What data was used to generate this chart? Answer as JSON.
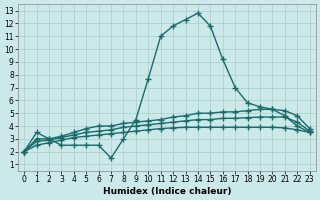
{
  "xlabel": "Humidex (Indice chaleur)",
  "ylabel": "",
  "xlim": [
    0,
    23
  ],
  "ylim": [
    1,
    13
  ],
  "xticks": [
    0,
    1,
    2,
    3,
    4,
    5,
    6,
    7,
    8,
    9,
    10,
    11,
    12,
    13,
    14,
    15,
    16,
    17,
    18,
    19,
    20,
    21,
    22,
    23
  ],
  "yticks": [
    1,
    2,
    3,
    4,
    5,
    6,
    7,
    8,
    9,
    10,
    11,
    12,
    13
  ],
  "bg_color": "#cce9e9",
  "grid_color": "#aacccc",
  "line_color": "#1a6b6b",
  "line1_x": [
    0,
    1,
    2,
    3,
    4,
    5,
    6,
    7,
    8,
    9,
    10,
    11,
    12,
    13,
    14,
    15,
    16,
    17,
    18,
    19,
    20,
    21,
    22,
    23
  ],
  "line1_y": [
    2.0,
    3.5,
    3.0,
    2.5,
    2.5,
    2.5,
    2.5,
    1.5,
    3.0,
    4.5,
    7.7,
    11.0,
    11.8,
    12.3,
    12.8,
    11.8,
    9.2,
    7.0,
    5.8,
    5.5,
    5.3,
    4.8,
    4.0,
    3.5
  ],
  "line2_x": [
    0,
    1,
    2,
    3,
    4,
    5,
    6,
    7,
    8,
    9,
    10,
    11,
    12,
    13,
    14,
    15,
    16,
    17,
    18,
    19,
    20,
    21,
    22,
    23
  ],
  "line2_y": [
    2.0,
    3.0,
    3.0,
    3.2,
    3.5,
    3.8,
    4.0,
    4.0,
    4.2,
    4.3,
    4.4,
    4.5,
    4.7,
    4.8,
    5.0,
    5.0,
    5.1,
    5.1,
    5.2,
    5.3,
    5.3,
    5.2,
    4.8,
    3.8
  ],
  "line3_x": [
    0,
    1,
    2,
    3,
    4,
    5,
    6,
    7,
    8,
    9,
    10,
    11,
    12,
    13,
    14,
    15,
    16,
    17,
    18,
    19,
    20,
    21,
    22,
    23
  ],
  "line3_y": [
    2.0,
    2.8,
    2.9,
    3.1,
    3.3,
    3.5,
    3.6,
    3.7,
    3.9,
    4.0,
    4.1,
    4.2,
    4.3,
    4.4,
    4.5,
    4.5,
    4.6,
    4.6,
    4.65,
    4.7,
    4.7,
    4.7,
    4.3,
    3.6
  ],
  "line4_x": [
    0,
    1,
    2,
    3,
    4,
    5,
    6,
    7,
    8,
    9,
    10,
    11,
    12,
    13,
    14,
    15,
    16,
    17,
    18,
    19,
    20,
    21,
    22,
    23
  ],
  "line4_y": [
    2.0,
    2.5,
    2.7,
    2.9,
    3.1,
    3.2,
    3.3,
    3.4,
    3.5,
    3.6,
    3.7,
    3.8,
    3.85,
    3.9,
    3.9,
    3.9,
    3.9,
    3.9,
    3.9,
    3.9,
    3.9,
    3.85,
    3.7,
    3.5
  ]
}
